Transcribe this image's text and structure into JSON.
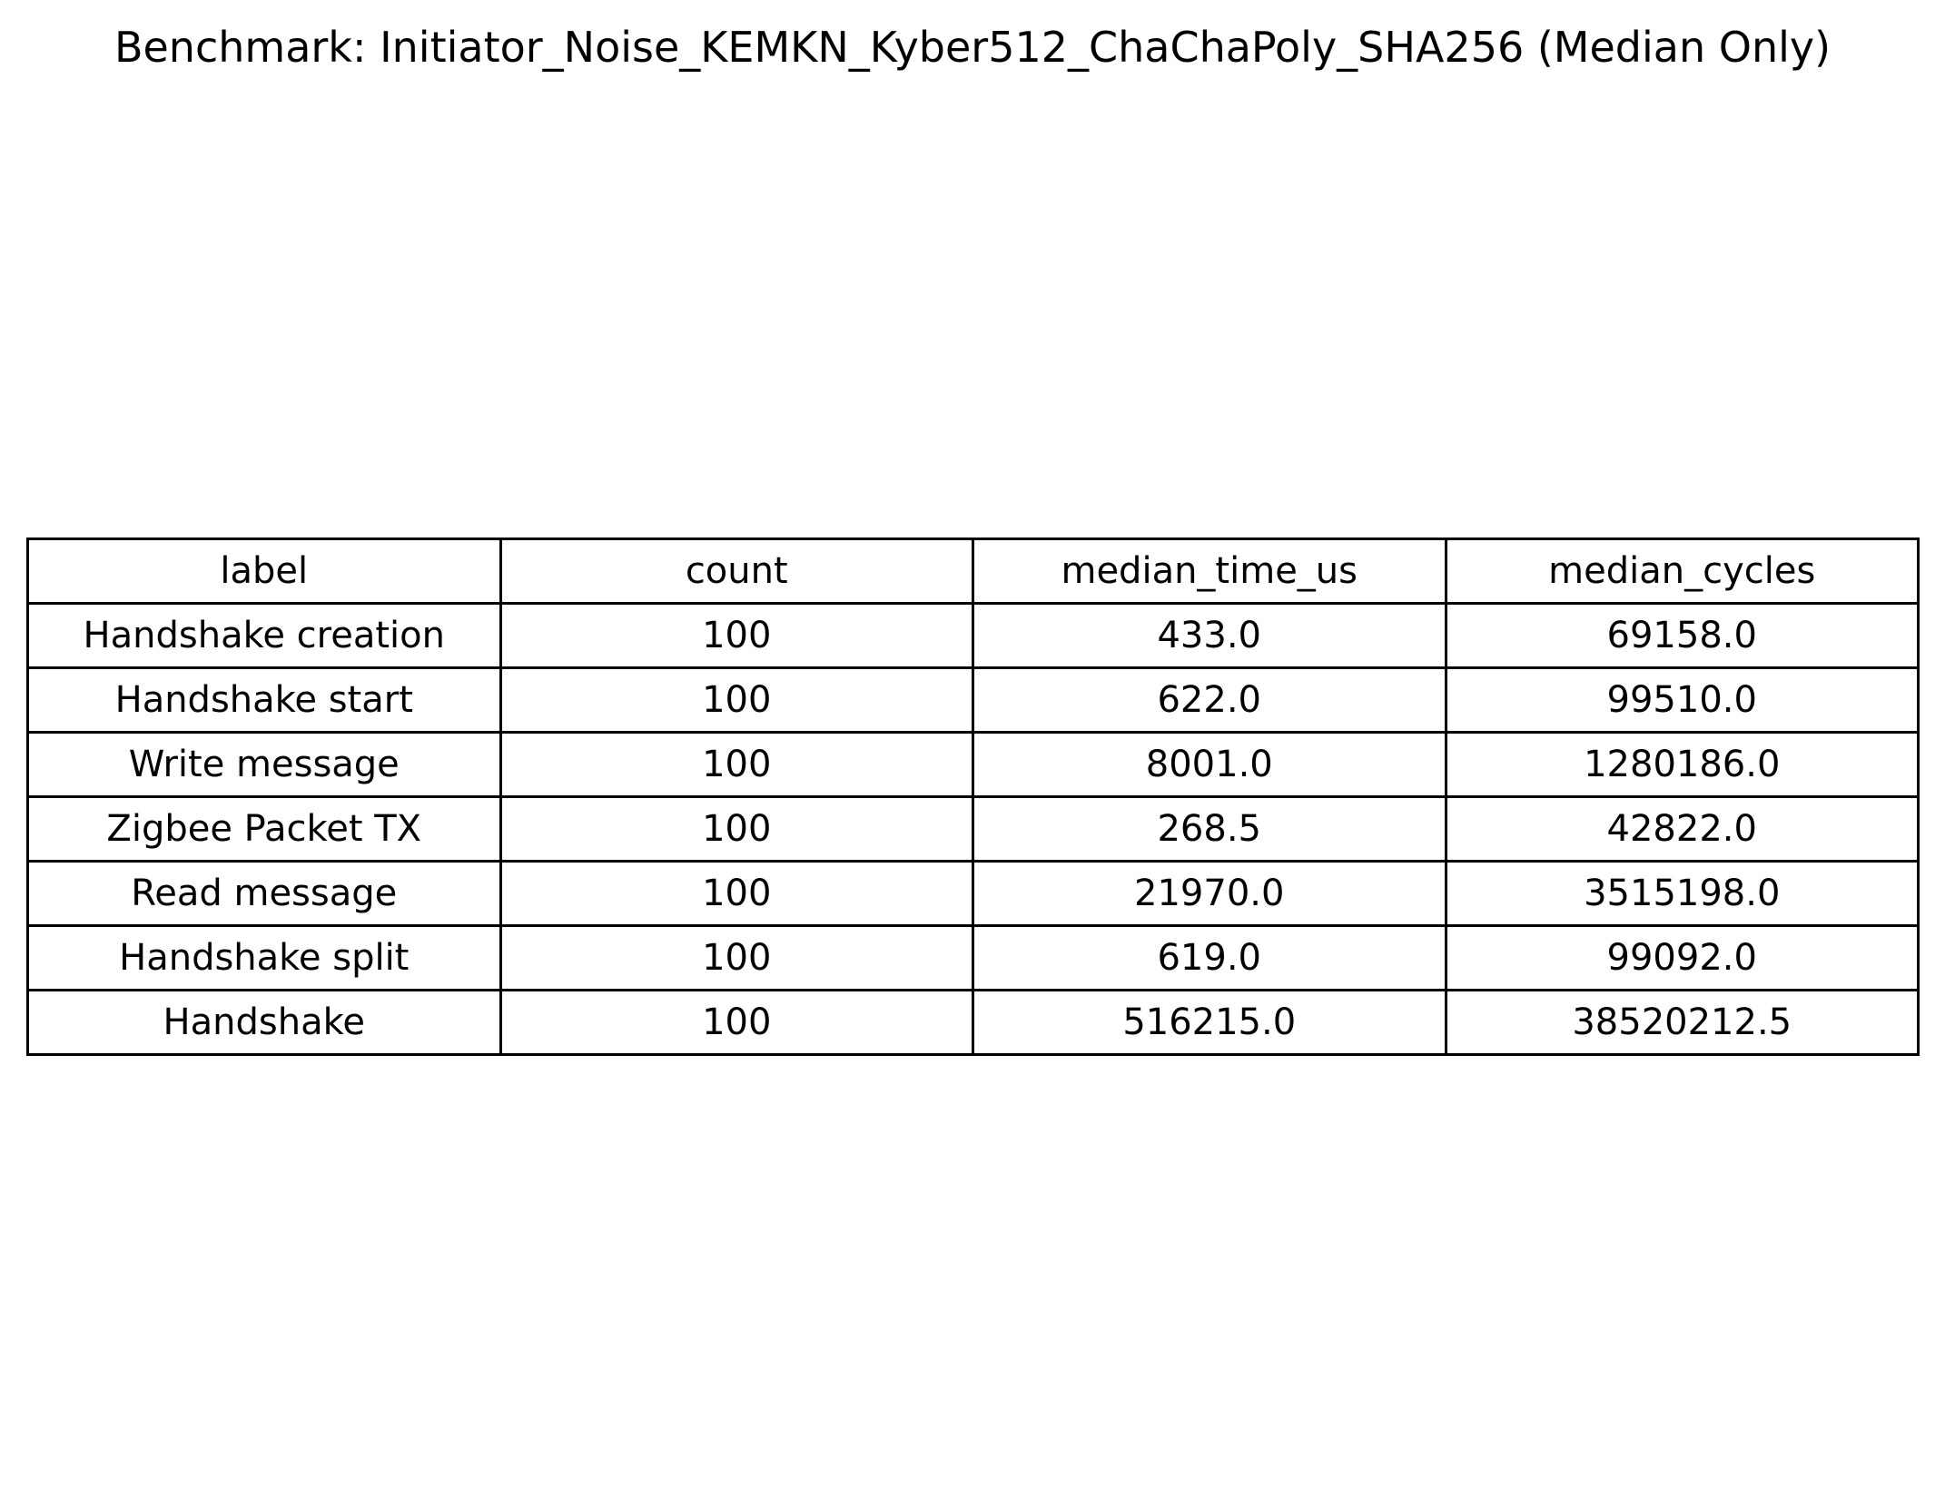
{
  "chart_data": {
    "type": "table",
    "title": "Benchmark: Initiator_Noise_KEMKN_Kyber512_ChaChaPoly_SHA256 (Median Only)",
    "columns": [
      "label",
      "count",
      "median_time_us",
      "median_cycles"
    ],
    "rows": [
      [
        "Handshake creation",
        "100",
        "433.0",
        "69158.0"
      ],
      [
        "Handshake start",
        "100",
        "622.0",
        "99510.0"
      ],
      [
        "Write message",
        "100",
        "8001.0",
        "1280186.0"
      ],
      [
        "Zigbee Packet TX",
        "100",
        "268.5",
        "42822.0"
      ],
      [
        "Read message",
        "100",
        "21970.0",
        "3515198.0"
      ],
      [
        "Handshake split",
        "100",
        "619.0",
        "99092.0"
      ],
      [
        "Handshake",
        "100",
        "516215.0",
        "38520212.5"
      ]
    ]
  }
}
